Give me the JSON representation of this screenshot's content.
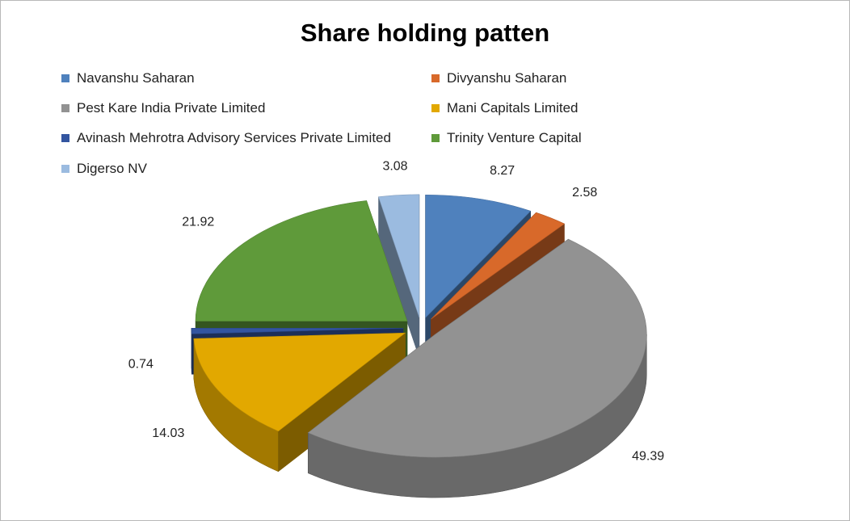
{
  "chart_data": {
    "type": "pie",
    "title": "Share holding patten",
    "legend_position": "top",
    "categories": [
      "Navanshu Saharan",
      "Divyanshu Saharan",
      "Pest Kare India Private Limited",
      "Mani Capitals Limited",
      "Avinash Mehrotra Advisory Services Private Limited",
      "Trinity Venture Capital",
      "Digerso NV"
    ],
    "values": [
      8.27,
      2.58,
      49.39,
      14.03,
      0.74,
      21.92,
      3.08
    ],
    "data_labels": [
      "8.27",
      "2.58",
      "49.39",
      "14.03",
      "0.74",
      "21.92",
      "3.08"
    ],
    "colors": [
      "#4f81bd",
      "#d8692a",
      "#929292",
      "#e2a800",
      "#3355a0",
      "#5f9a3a",
      "#9bbbe0"
    ]
  }
}
